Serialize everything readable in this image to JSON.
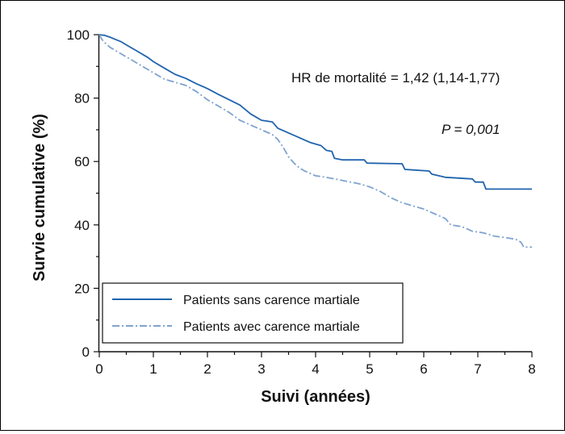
{
  "chart_data": {
    "type": "line",
    "title": "",
    "xlabel": "Suivi (années)",
    "ylabel": "Survie cumulative (%)",
    "xlim": [
      0,
      8
    ],
    "ylim": [
      0,
      100
    ],
    "xticks": [
      "0",
      "1",
      "2",
      "3",
      "4",
      "5",
      "6",
      "7",
      "8"
    ],
    "yticks": [
      "0",
      "20",
      "40",
      "60",
      "80",
      "100"
    ],
    "grid": false,
    "legend_position": "bottom-left",
    "annotations": {
      "hr": "HR de mortalité = 1,42 (1,14-1,77)",
      "p_value": "P = 0,001"
    },
    "colors": {
      "series1": "#1f64ad",
      "series2": "#7fa3cf"
    },
    "series": [
      {
        "name": "Patients sans carence martiale",
        "style": "solid",
        "points": [
          [
            0,
            100
          ],
          [
            0.1,
            99.8
          ],
          [
            0.2,
            99.2
          ],
          [
            0.3,
            98.5
          ],
          [
            0.4,
            97.8
          ],
          [
            0.5,
            96.8
          ],
          [
            0.7,
            94.8
          ],
          [
            0.9,
            92.8
          ],
          [
            1.0,
            91.5
          ],
          [
            1.2,
            89.5
          ],
          [
            1.4,
            87.5
          ],
          [
            1.6,
            86.2
          ],
          [
            1.8,
            84.5
          ],
          [
            2.0,
            83.0
          ],
          [
            2.2,
            81.2
          ],
          [
            2.4,
            79.5
          ],
          [
            2.6,
            77.8
          ],
          [
            2.8,
            75.0
          ],
          [
            2.9,
            74.0
          ],
          [
            3.0,
            73.0
          ],
          [
            3.2,
            72.5
          ],
          [
            3.3,
            70.5
          ],
          [
            3.5,
            69.0
          ],
          [
            3.7,
            67.5
          ],
          [
            3.9,
            66.0
          ],
          [
            4.1,
            65.0
          ],
          [
            4.2,
            63.5
          ],
          [
            4.3,
            63.2
          ],
          [
            4.35,
            61.0
          ],
          [
            4.5,
            60.5
          ],
          [
            4.9,
            60.5
          ],
          [
            4.95,
            59.5
          ],
          [
            5.6,
            59.3
          ],
          [
            5.65,
            57.5
          ],
          [
            6.1,
            57.0
          ],
          [
            6.15,
            56.0
          ],
          [
            6.4,
            55.0
          ],
          [
            6.9,
            54.5
          ],
          [
            6.95,
            53.5
          ],
          [
            7.1,
            53.5
          ],
          [
            7.15,
            51.3
          ],
          [
            8.0,
            51.3
          ]
        ]
      },
      {
        "name": "Patients avec carence martiale",
        "style": "dash-dot",
        "points": [
          [
            0,
            100
          ],
          [
            0.05,
            98.5
          ],
          [
            0.1,
            97.5
          ],
          [
            0.2,
            96.0
          ],
          [
            0.4,
            94.0
          ],
          [
            0.6,
            92.0
          ],
          [
            0.8,
            90.0
          ],
          [
            1.0,
            88.0
          ],
          [
            1.2,
            86.0
          ],
          [
            1.4,
            85.0
          ],
          [
            1.6,
            84.0
          ],
          [
            1.8,
            82.0
          ],
          [
            2.0,
            79.5
          ],
          [
            2.2,
            77.5
          ],
          [
            2.4,
            75.5
          ],
          [
            2.6,
            73.0
          ],
          [
            2.8,
            71.5
          ],
          [
            3.0,
            70.0
          ],
          [
            3.2,
            68.5
          ],
          [
            3.3,
            67.0
          ],
          [
            3.4,
            64.5
          ],
          [
            3.5,
            61.5
          ],
          [
            3.6,
            59.5
          ],
          [
            3.7,
            58.0
          ],
          [
            3.8,
            57.0
          ],
          [
            4.0,
            55.5
          ],
          [
            4.2,
            55.0
          ],
          [
            4.5,
            54.0
          ],
          [
            4.8,
            53.0
          ],
          [
            5.0,
            52.0
          ],
          [
            5.2,
            50.5
          ],
          [
            5.4,
            48.5
          ],
          [
            5.6,
            47.0
          ],
          [
            5.8,
            46.0
          ],
          [
            6.0,
            45.0
          ],
          [
            6.2,
            43.5
          ],
          [
            6.4,
            42.0
          ],
          [
            6.5,
            40.0
          ],
          [
            6.7,
            39.5
          ],
          [
            6.9,
            38.0
          ],
          [
            7.1,
            37.5
          ],
          [
            7.3,
            36.5
          ],
          [
            7.5,
            36.0
          ],
          [
            7.7,
            35.5
          ],
          [
            7.8,
            34.5
          ],
          [
            7.85,
            33.0
          ],
          [
            8.0,
            33.0
          ]
        ]
      }
    ]
  }
}
